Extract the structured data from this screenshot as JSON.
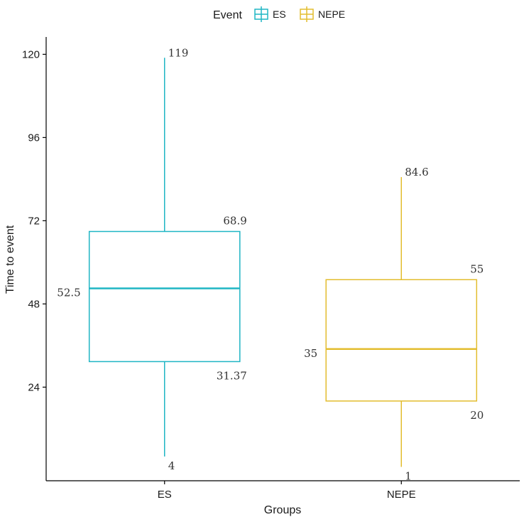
{
  "chart_data": {
    "type": "boxplot",
    "xlabel": "Groups",
    "ylabel": "Time to event",
    "ylim": [
      -3,
      125
    ],
    "yticks": [
      24,
      48,
      72,
      96,
      120
    ],
    "categories": [
      "ES",
      "NEPE"
    ],
    "legend": {
      "title": "Event",
      "placement": "top",
      "entries": [
        "ES",
        "NEPE"
      ]
    },
    "series": [
      {
        "name": "ES",
        "color": "#1fb5c4",
        "min": 4,
        "q1": 31.37,
        "median": 52.5,
        "q3": 68.9,
        "max": 119,
        "labels": {
          "max": "119",
          "q3": "68.9",
          "median": "52.5",
          "q1": "31.37",
          "min": "4"
        }
      },
      {
        "name": "NEPE",
        "color": "#e3bd2f",
        "min": 1,
        "q1": 20,
        "median": 35,
        "q3": 55,
        "max": 84.6,
        "labels": {
          "max": "84.6",
          "q3": "55",
          "median": "35",
          "q1": "20",
          "min": "1"
        }
      }
    ]
  }
}
